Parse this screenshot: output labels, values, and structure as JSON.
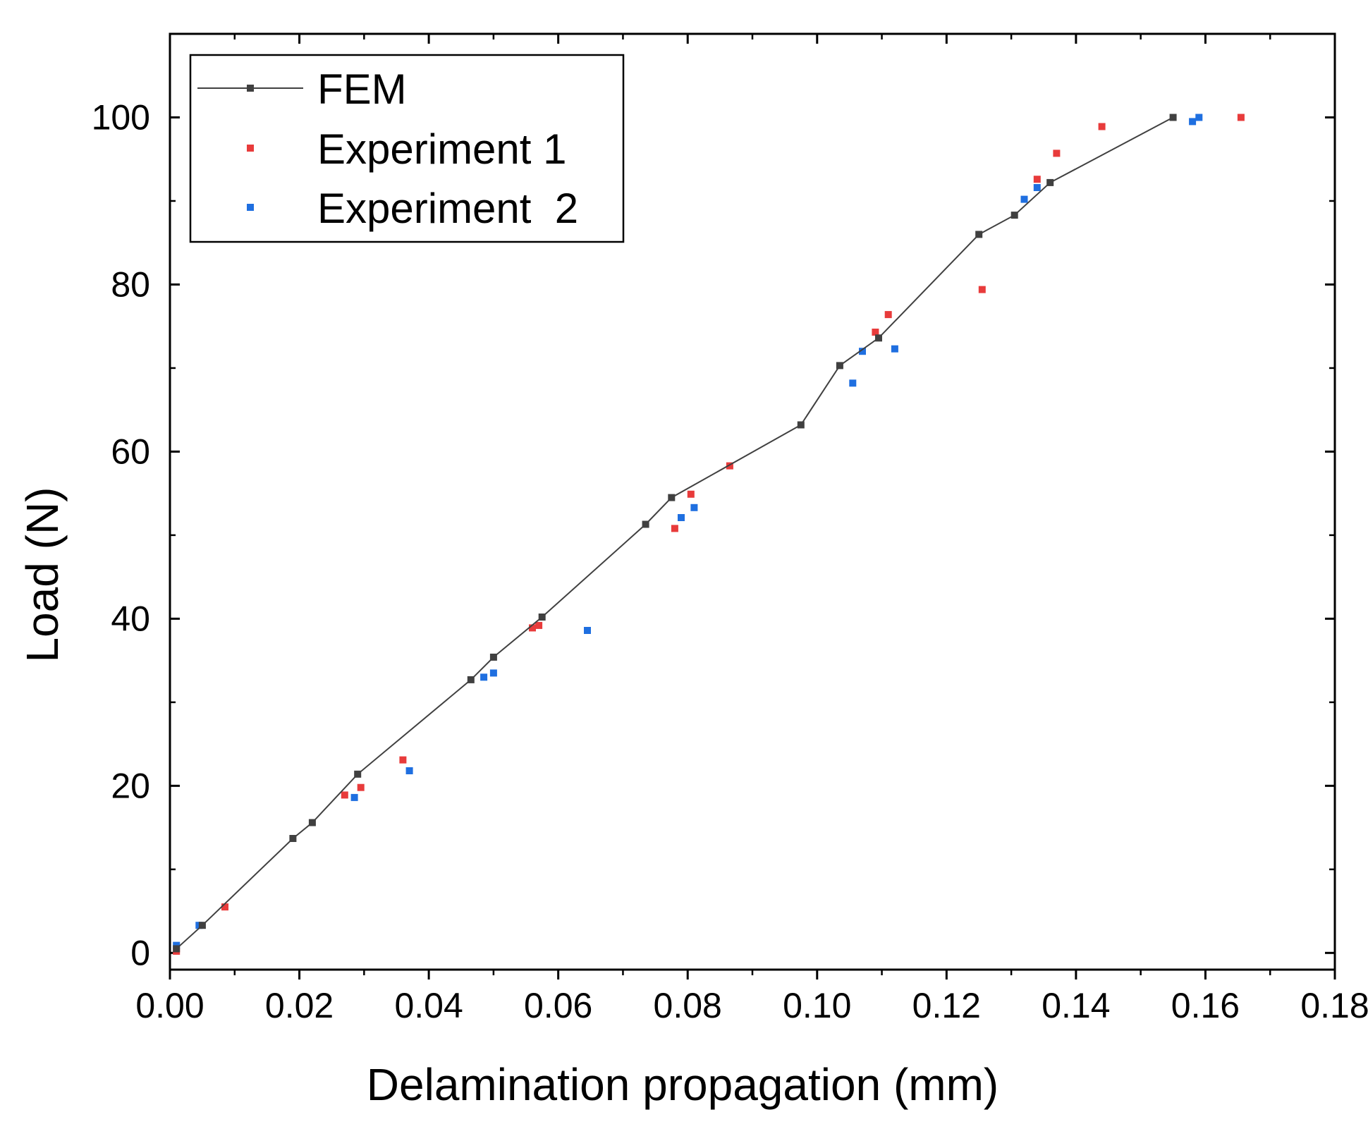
{
  "chart_data": {
    "type": "scatter",
    "title": "",
    "xlabel": "Delamination propagation (mm)",
    "ylabel": "Load (N)",
    "xlim": [
      0.0,
      0.18
    ],
    "ylim": [
      -2,
      110
    ],
    "xticks": [
      0.0,
      0.02,
      0.04,
      0.06,
      0.08,
      0.1,
      0.12,
      0.14,
      0.16,
      0.18
    ],
    "xtick_labels": [
      "0.00",
      "0.02",
      "0.04",
      "0.06",
      "0.08",
      "0.10",
      "0.12",
      "0.14",
      "0.16",
      "0.18"
    ],
    "yticks": [
      0,
      20,
      40,
      60,
      80,
      100
    ],
    "ytick_labels": [
      "0",
      "20",
      "40",
      "60",
      "80",
      "100"
    ],
    "grid": false,
    "legend_position": "top-left",
    "colors": {
      "fem": "#404040",
      "exp1": "#e83b3b",
      "exp2": "#1f6fe0"
    },
    "series": [
      {
        "name": "FEM",
        "style": "line-with-markers",
        "points": [
          [
            0.001,
            0.5
          ],
          [
            0.005,
            3.3
          ],
          [
            0.019,
            13.7
          ],
          [
            0.022,
            15.6
          ],
          [
            0.029,
            21.4
          ],
          [
            0.0465,
            32.7
          ],
          [
            0.05,
            35.4
          ],
          [
            0.0575,
            40.2
          ],
          [
            0.0735,
            51.3
          ],
          [
            0.0775,
            54.5
          ],
          [
            0.0975,
            63.2
          ],
          [
            0.1035,
            70.3
          ],
          [
            0.1095,
            73.6
          ],
          [
            0.125,
            86.0
          ],
          [
            0.1305,
            88.3
          ],
          [
            0.136,
            92.2
          ],
          [
            0.155,
            100.0
          ]
        ]
      },
      {
        "name": "Experiment 1",
        "style": "markers",
        "points": [
          [
            0.001,
            0.2
          ],
          [
            0.0085,
            5.5
          ],
          [
            0.027,
            18.9
          ],
          [
            0.0295,
            19.8
          ],
          [
            0.036,
            23.1
          ],
          [
            0.056,
            38.9
          ],
          [
            0.057,
            39.2
          ],
          [
            0.078,
            50.8
          ],
          [
            0.0805,
            54.9
          ],
          [
            0.0865,
            58.3
          ],
          [
            0.109,
            74.3
          ],
          [
            0.111,
            76.4
          ],
          [
            0.1255,
            79.4
          ],
          [
            0.134,
            92.6
          ],
          [
            0.137,
            95.7
          ],
          [
            0.144,
            98.9
          ],
          [
            0.1655,
            100.0
          ]
        ]
      },
      {
        "name": "Experiment  2",
        "style": "markers",
        "points": [
          [
            0.001,
            0.9
          ],
          [
            0.0045,
            3.3
          ],
          [
            0.0285,
            18.6
          ],
          [
            0.037,
            21.8
          ],
          [
            0.0485,
            33.0
          ],
          [
            0.05,
            33.5
          ],
          [
            0.0645,
            38.6
          ],
          [
            0.079,
            52.1
          ],
          [
            0.081,
            53.3
          ],
          [
            0.1055,
            68.2
          ],
          [
            0.107,
            72.0
          ],
          [
            0.112,
            72.3
          ],
          [
            0.132,
            90.2
          ],
          [
            0.134,
            91.6
          ],
          [
            0.158,
            99.5
          ],
          [
            0.159,
            100.0
          ]
        ]
      }
    ]
  }
}
